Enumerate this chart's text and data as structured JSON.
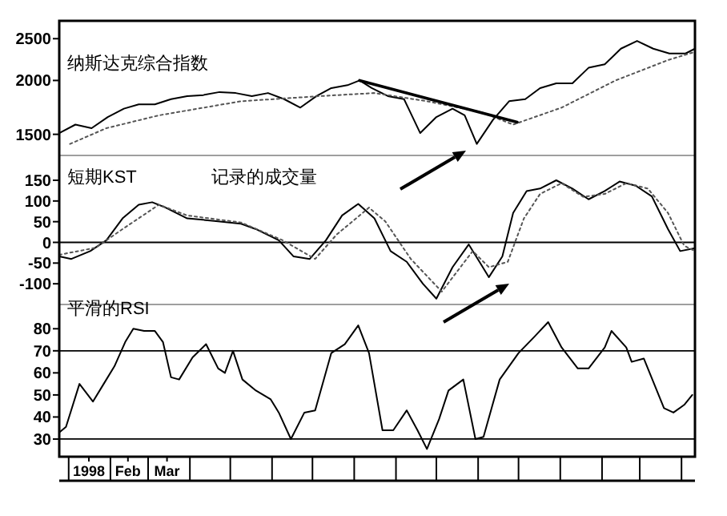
{
  "chart_data": [
    {
      "type": "line",
      "title": "纳斯达克综合指数",
      "log": true,
      "xlim": [
        "1997-12-25",
        "1999-04-11"
      ],
      "ylim": [
        1340,
        2750
      ],
      "yticks": [
        1500,
        2000,
        2500
      ],
      "tick_labels": "y",
      "series": [
        {
          "type": "line",
          "color": "#000000",
          "line_style": "solid",
          "x": [
            "1997-12-25",
            "1998-01-06",
            "1998-01-18",
            "1998-01-30",
            "1998-02-11",
            "1998-02-22",
            "1998-03-06",
            "1998-03-18",
            "1998-03-30",
            "1998-04-11",
            "1998-04-23",
            "1998-05-05",
            "1998-05-17",
            "1998-05-29",
            "1998-06-10",
            "1998-06-22",
            "1998-07-04",
            "1998-07-15",
            "1998-07-27",
            "1998-08-05",
            "1998-08-14",
            "1998-08-26",
            "1998-09-07",
            "1998-09-19",
            "1998-10-01",
            "1998-10-13",
            "1998-10-22",
            "1998-10-31",
            "1998-11-12",
            "1998-11-24",
            "1998-12-06",
            "1998-12-17",
            "1998-12-29",
            "1999-01-10",
            "1999-01-22",
            "1999-02-03",
            "1999-02-15",
            "1999-02-27",
            "1999-03-11",
            "1999-03-23",
            "1999-04-04",
            "1999-04-11"
          ],
          "values": [
            1510,
            1580,
            1550,
            1645,
            1720,
            1760,
            1760,
            1810,
            1840,
            1850,
            1880,
            1870,
            1840,
            1870,
            1810,
            1730,
            1840,
            1920,
            1950,
            2000,
            1920,
            1840,
            1810,
            1510,
            1645,
            1720,
            1660,
            1425,
            1620,
            1790,
            1810,
            1920,
            1970,
            1970,
            2140,
            2180,
            2370,
            2470,
            2370,
            2310,
            2310,
            2370
          ]
        },
        {
          "type": "line",
          "color": "#555555",
          "line_style": "dotted",
          "x": [
            "1998-01-02",
            "1998-01-29",
            "1998-03-09",
            "1998-05-09",
            "1998-07-07",
            "1998-08-16",
            "1998-09-24",
            "1998-11-03",
            "1998-11-27",
            "1999-01-02",
            "1999-02-11",
            "1999-03-22",
            "1999-04-11"
          ],
          "values": [
            1425,
            1550,
            1660,
            1790,
            1840,
            1870,
            1790,
            1690,
            1580,
            1730,
            2000,
            2230,
            2330
          ]
        },
        {
          "type": "line",
          "color": "#000000",
          "line_style": "solid",
          "x": [
            "1998-08-05",
            "1998-11-30"
          ],
          "values": [
            2000,
            1600
          ]
        }
      ]
    },
    {
      "type": "line",
      "title": "短期KST",
      "xlim": [
        "1997-12-25",
        "1999-04-11"
      ],
      "ylim": [
        -150,
        210
      ],
      "yticks": [
        150,
        100,
        50,
        0,
        -50,
        -100
      ],
      "tick_labels": "y",
      "ref_lines": [
        {
          "axis": "y",
          "value": 0,
          "color": "#000000"
        }
      ],
      "annotations": [
        "记录的成交量"
      ],
      "series": [
        {
          "type": "line",
          "color": "#000000",
          "line_style": "solid",
          "x": [
            "1997-12-25",
            "1998-01-03",
            "1998-01-17",
            "1998-01-29",
            "1998-02-10",
            "1998-02-22",
            "1998-03-04",
            "1998-03-14",
            "1998-03-30",
            "1998-04-19",
            "1998-05-09",
            "1998-05-20",
            "1998-06-06",
            "1998-06-17",
            "1998-06-29",
            "1998-07-11",
            "1998-07-23",
            "1998-08-04",
            "1998-08-16",
            "1998-08-28",
            "1998-09-09",
            "1998-09-21",
            "1998-10-01",
            "1998-10-13",
            "1998-10-25",
            "1998-11-02",
            "1998-11-09",
            "1998-11-19",
            "1998-11-27",
            "1998-12-07",
            "1998-12-17",
            "1998-12-29",
            "1999-01-10",
            "1999-01-22",
            "1999-02-03",
            "1999-02-14",
            "1999-02-26",
            "1999-03-10",
            "1999-03-22",
            "1999-03-31",
            "1999-04-11"
          ],
          "values": [
            -34,
            -40,
            -21,
            5,
            58,
            91,
            97,
            84,
            58,
            52,
            45,
            32,
            5,
            -34,
            -40,
            5,
            65,
            93,
            58,
            -21,
            -47,
            -100,
            -136,
            -60,
            -5,
            -47,
            -84,
            -34,
            71,
            124,
            130,
            150,
            130,
            104,
            124,
            147,
            137,
            111,
            32,
            -21,
            -14
          ]
        },
        {
          "type": "line",
          "color": "#555555",
          "line_style": "dotted",
          "x": [
            "1997-12-25",
            "1998-01-21",
            "1998-02-10",
            "1998-03-09",
            "1998-03-30",
            "1998-05-09",
            "1998-06-09",
            "1998-07-03",
            "1998-07-19",
            "1998-08-12",
            "1998-08-24",
            "1998-09-12",
            "1998-10-05",
            "1998-10-28",
            "1998-11-09",
            "1998-11-23",
            "1998-12-05",
            "1998-12-17",
            "1999-01-02",
            "1999-01-18",
            "1999-02-03",
            "1999-02-19",
            "1999-03-07",
            "1999-03-22",
            "1999-04-03",
            "1999-04-11"
          ],
          "values": [
            -30,
            -13,
            32,
            91,
            65,
            48,
            5,
            -40,
            19,
            84,
            51,
            -40,
            -119,
            -21,
            -60,
            -47,
            58,
            117,
            143,
            110,
            117,
            143,
            130,
            71,
            -8,
            -21
          ]
        }
      ]
    },
    {
      "type": "line",
      "title": "平滑的RSI",
      "xlim": [
        "1997-12-25",
        "1999-04-11"
      ],
      "ylim": [
        22,
        91
      ],
      "yticks": [
        80,
        70,
        60,
        50,
        40,
        30
      ],
      "xticks": [
        {
          "value": "1998-01-01",
          "label": null
        },
        {
          "value": "1998-01-16",
          "label": "1998"
        },
        {
          "value": "1998-02-01",
          "label": null
        },
        {
          "value": "1998-02-14",
          "label": "Feb"
        },
        {
          "value": "1998-03-01",
          "label": null
        },
        {
          "value": "1998-03-15",
          "label": "Mar"
        },
        {
          "value": "1998-04-01",
          "label": null
        },
        {
          "value": "1998-05-01",
          "label": null
        },
        {
          "value": "1998-06-01",
          "label": null
        },
        {
          "value": "1998-07-01",
          "label": null
        },
        {
          "value": "1998-08-01",
          "label": null
        },
        {
          "value": "1998-09-01",
          "label": null
        },
        {
          "value": "1998-10-01",
          "label": null
        },
        {
          "value": "1998-11-01",
          "label": null
        },
        {
          "value": "1998-12-01",
          "label": null
        },
        {
          "value": "1999-01-01",
          "label": null
        },
        {
          "value": "1999-02-01",
          "label": null
        },
        {
          "value": "1999-03-01",
          "label": null
        },
        {
          "value": "1999-04-01",
          "label": null
        }
      ],
      "ref_lines": [
        {
          "axis": "y",
          "value": 70,
          "color": "#000000"
        },
        {
          "axis": "y",
          "value": 30,
          "color": "#000000"
        }
      ],
      "series": [
        {
          "type": "line",
          "color": "#000000",
          "line_style": "solid",
          "x": [
            "1997-12-25",
            "1997-12-30",
            "1998-01-09",
            "1998-01-19",
            "1998-01-27",
            "1998-02-04",
            "1998-02-12",
            "1998-02-18",
            "1998-02-26",
            "1998-03-06",
            "1998-03-12",
            "1998-03-18",
            "1998-03-24",
            "1998-04-03",
            "1998-04-13",
            "1998-04-22",
            "1998-04-27",
            "1998-05-03",
            "1998-05-10",
            "1998-05-20",
            "1998-05-31",
            "1998-06-06",
            "1998-06-15",
            "1998-06-25",
            "1998-07-03",
            "1998-07-15",
            "1998-07-25",
            "1998-08-04",
            "1998-08-12",
            "1998-08-22",
            "1998-08-30",
            "1998-09-09",
            "1998-09-17",
            "1998-09-24",
            "1998-10-03",
            "1998-10-10",
            "1998-10-21",
            "1998-10-30",
            "1998-11-05",
            "1998-11-17",
            "1998-12-01",
            "1998-12-13",
            "1998-12-23",
            "1999-01-02",
            "1999-01-14",
            "1999-01-22",
            "1999-02-03",
            "1999-02-08",
            "1999-02-19",
            "1999-02-23",
            "1999-03-04",
            "1999-03-19",
            "1999-03-26",
            "1999-04-03",
            "1999-04-09"
          ],
          "values": [
            33,
            35.5,
            55,
            47,
            55,
            63,
            74,
            80,
            79,
            79,
            74,
            58,
            57,
            67,
            73,
            62,
            60,
            70,
            57,
            52,
            48,
            42,
            30,
            42,
            43,
            69,
            73,
            81.5,
            69,
            34,
            34,
            43,
            34,
            25.5,
            39,
            52,
            57,
            30,
            31,
            57,
            69,
            76.5,
            83,
            71.5,
            62,
            62,
            71.5,
            79,
            71.5,
            65,
            66.5,
            44,
            42,
            45.5,
            50
          ]
        }
      ]
    }
  ]
}
